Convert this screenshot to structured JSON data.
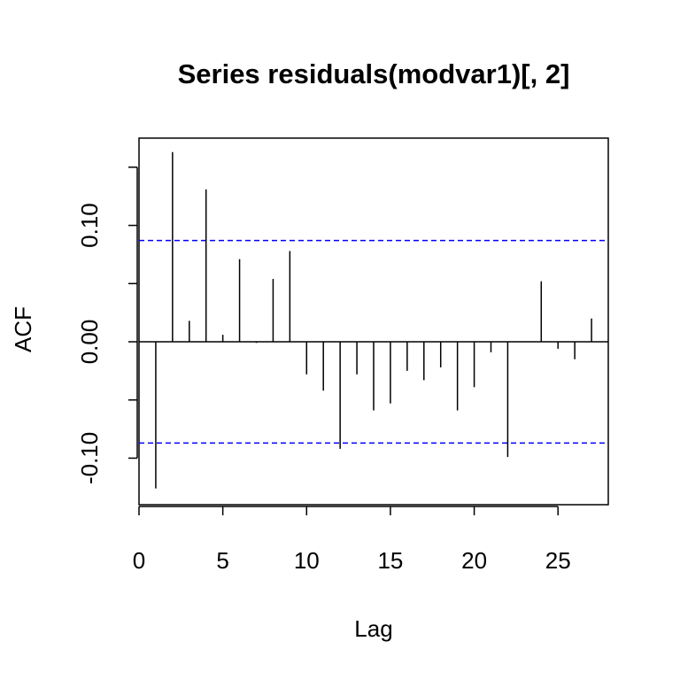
{
  "chart_data": {
    "type": "bar",
    "title": "Series residuals(modvar1)[, 2]",
    "xlabel": "Lag",
    "ylabel": "ACF",
    "xlim": [
      0,
      28
    ],
    "ylim": [
      -0.14,
      0.175
    ],
    "x_ticks": [
      0,
      5,
      10,
      15,
      20,
      25
    ],
    "x_tick_labels": [
      "0",
      "5",
      "10",
      "15",
      "20",
      "25"
    ],
    "y_ticks": [
      -0.1,
      -0.05,
      0,
      0.05,
      0.1,
      0.15
    ],
    "y_tick_labels": [
      "-0.10",
      "",
      "0.00",
      "",
      "0.10",
      ""
    ],
    "lags": [
      1,
      2,
      3,
      4,
      5,
      6,
      7,
      8,
      9,
      10,
      11,
      12,
      13,
      14,
      15,
      16,
      17,
      18,
      19,
      20,
      21,
      22,
      23,
      24,
      25,
      26,
      27
    ],
    "values": [
      -0.126,
      0.163,
      0.018,
      0.131,
      0.006,
      0.071,
      -0.001,
      0.054,
      0.078,
      -0.028,
      -0.042,
      -0.092,
      -0.028,
      -0.059,
      -0.053,
      -0.025,
      -0.033,
      -0.022,
      -0.059,
      -0.039,
      -0.009,
      -0.099,
      0.0,
      0.052,
      -0.006,
      -0.015,
      0.02
    ],
    "confidence_band": [
      -0.087,
      0.087
    ],
    "confidence_color": "#0000ff",
    "bar_color": "#000000",
    "grid": false,
    "legend": "none"
  }
}
